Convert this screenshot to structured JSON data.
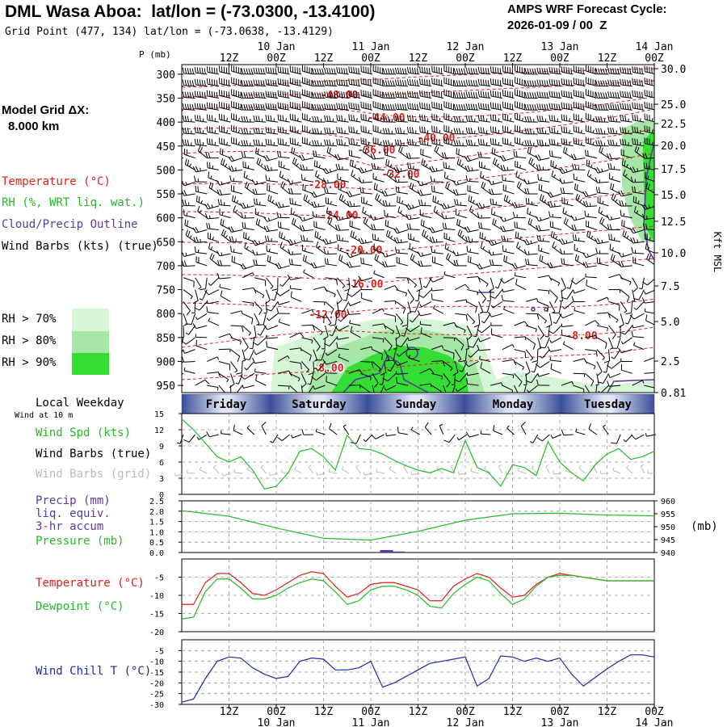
{
  "header": {
    "title": "DML Wasa Aboa:  lat/lon = (-73.0300, -13.4100)",
    "subtitle": "Grid Point (477, 134) lat/lon = (-73.0638, -13.4129)",
    "forecast_label": "AMPS WRF Forecast Cycle:",
    "forecast_cycle": "2026-01-09 / 00  Z",
    "p_label": "P (mb)",
    "model_grid_label": "Model Grid ΔX:",
    "model_grid_value": "8.000 km"
  },
  "time_axis": {
    "top_dates": [
      "10 Jan",
      "11 Jan",
      "12 Jan",
      "13 Jan",
      "14 Jan"
    ],
    "hour_labels": [
      "12Z",
      "00Z",
      "12Z",
      "00Z",
      "12Z",
      "00Z",
      "12Z",
      "00Z",
      "12Z",
      "00Z"
    ],
    "weekday_label": "Local Weekday",
    "weekdays": [
      "Friday",
      "Saturday",
      "Sunday",
      "Monday",
      "Tuesday"
    ]
  },
  "colors": {
    "temp": "#e0201c",
    "rh": "#22bb22",
    "cloud": "#5a3a9a",
    "wind_chill": "#1a2aa8",
    "rh70": "#d6f5d6",
    "rh80": "#a6e6a6",
    "rh90": "#33dd33",
    "barb_grid": "#bbbbbb"
  },
  "chart_data": [
    {
      "type": "contour",
      "title": "Vertical cross-section",
      "legend": {
        "temperature": "Temperature (°C)",
        "rh": "RH (%, WRT liq. wat.)",
        "cloud": "Cloud/Precip Outline",
        "wind": "Wind Barbs (kts) (true)",
        "rh70": "RH > 70%",
        "rh80": "RH > 80%",
        "rh90": "RH > 90%"
      },
      "pressure_ticks": [
        "300",
        "350",
        "400",
        "450",
        "500",
        "550",
        "600",
        "650",
        "700",
        "750",
        "800",
        "850",
        "900",
        "950"
      ],
      "height_label": "Kft MSL",
      "height_ticks": [
        "30.0",
        "25.0",
        "22.5",
        "20.0",
        "17.5",
        "15.0",
        "12.5",
        "10.0",
        "7.5",
        "5.0",
        "2.5",
        "0.81"
      ],
      "temperature_labels": [
        "-48.00",
        "-44.00",
        "-40.00",
        "-36.00",
        "-32.00",
        "-28.00",
        "-24.00",
        "-20.00",
        "-16.00",
        "-12.00",
        "-8.00",
        "-8.00"
      ]
    },
    {
      "type": "line",
      "title": "Wind speed at 10 m",
      "label_wind_at": "Wind at 10 m",
      "label_speed": "Wind Spd (kts)",
      "label_barbs_true": "Wind Barbs (true)",
      "label_barbs_grid": "Wind Barbs (grid)",
      "y_ticks": [
        "15",
        "12",
        "9",
        "6",
        "3",
        "0"
      ],
      "ylim": [
        0,
        15
      ],
      "hours": [
        0,
        3,
        6,
        9,
        12,
        15,
        18,
        21,
        24,
        27,
        30,
        33,
        36,
        39,
        42,
        45,
        48,
        51,
        54,
        57,
        60,
        63,
        66,
        69,
        72,
        75,
        78,
        81,
        84,
        87,
        90,
        93,
        96,
        99,
        102,
        105,
        108,
        111,
        114,
        117,
        120
      ],
      "values": [
        14,
        12,
        9.5,
        7,
        6,
        7,
        4.5,
        1,
        1.5,
        4,
        8,
        8.5,
        7,
        4.5,
        11,
        8.5,
        8.3,
        7.5,
        6.3,
        5.3,
        4.5,
        4,
        4.8,
        4,
        10,
        5,
        4,
        1.5,
        5.5,
        5,
        3.5,
        9.8,
        6,
        4,
        2.5,
        5.5,
        7.5,
        8.5,
        6.5,
        7,
        8
      ]
    },
    {
      "type": "line",
      "title": "Precipitation and pressure",
      "label_precip": "Precip (mm)",
      "label_liq": "liq. equiv.",
      "label_accum": "3-hr accum",
      "label_pressure": "Pressure (mb)",
      "precip_ticks": [
        "2.5",
        "2.0",
        "1.5",
        "1.0",
        "0.5",
        "0.0"
      ],
      "pressure_ticks": [
        "960",
        "955",
        "950",
        "945",
        "940"
      ],
      "pressure_unit": "(mb)",
      "precip_ylim": [
        0,
        2.5
      ],
      "pressure_ylim": [
        940,
        960
      ],
      "hours": [
        0,
        12,
        24,
        36,
        48,
        60,
        72,
        84,
        96,
        108,
        120
      ],
      "pressure": [
        956.2,
        954.0,
        949.5,
        945.5,
        944.8,
        948.2,
        952.5,
        955.0,
        955.2,
        954.5,
        954.2
      ],
      "precip_bars": [
        {
          "hour": 52,
          "value": 0.12
        },
        {
          "hour": 55,
          "value": 0.05
        }
      ]
    },
    {
      "type": "line",
      "title": "Temperature and dewpoint",
      "label_temp": "Temperature (°C)",
      "label_dew": "Dewpoint (°C)",
      "y_ticks": [
        "-5",
        "-10",
        "-15",
        "-20"
      ],
      "ylim": [
        -20,
        0
      ],
      "hours": [
        0,
        3,
        6,
        9,
        12,
        15,
        18,
        21,
        24,
        27,
        30,
        33,
        36,
        39,
        42,
        45,
        48,
        51,
        54,
        57,
        60,
        63,
        66,
        69,
        72,
        75,
        78,
        81,
        84,
        87,
        90,
        93,
        96,
        99,
        102,
        105,
        108,
        111,
        114,
        117,
        120
      ],
      "temperature": [
        -12.5,
        -12.5,
        -6.5,
        -4.0,
        -4.0,
        -6.5,
        -9.5,
        -10.0,
        -8.5,
        -6.5,
        -4.5,
        -3.5,
        -4.0,
        -7.5,
        -10.5,
        -9.5,
        -7.0,
        -6.5,
        -6.5,
        -7.5,
        -8.5,
        -11.5,
        -11.5,
        -7.5,
        -5.5,
        -4.0,
        -5.0,
        -8.0,
        -10.5,
        -10.0,
        -7.0,
        -5.0,
        -4.0,
        -4.5,
        -5.0,
        -5.5,
        -6.0,
        -6.0,
        -6.0,
        -6.0,
        -6.0
      ],
      "dewpoint": [
        -16.5,
        -16.0,
        -9.0,
        -5.5,
        -5.5,
        -8.0,
        -11.0,
        -11.0,
        -10.0,
        -8.0,
        -6.5,
        -5.5,
        -6.0,
        -9.0,
        -12.5,
        -11.5,
        -8.5,
        -7.5,
        -7.5,
        -8.5,
        -10.0,
        -13.0,
        -13.5,
        -9.5,
        -7.0,
        -5.0,
        -6.0,
        -9.5,
        -12.5,
        -11.0,
        -7.5,
        -5.0,
        -4.5,
        -4.5,
        -5.0,
        -5.5,
        -6.0,
        -6.0,
        -6.0,
        -6.0,
        -6.0
      ]
    },
    {
      "type": "line",
      "title": "Wind chill",
      "label_chill": "Wind Chill T (°C)",
      "y_ticks": [
        "-5",
        "-10",
        "-15",
        "-20",
        "-25",
        "-30"
      ],
      "ylim": [
        -30,
        0
      ],
      "hours": [
        0,
        3,
        6,
        9,
        12,
        15,
        18,
        21,
        24,
        27,
        30,
        33,
        36,
        39,
        42,
        45,
        48,
        51,
        54,
        57,
        60,
        63,
        66,
        69,
        72,
        75,
        78,
        81,
        84,
        87,
        90,
        93,
        96,
        99,
        102,
        105,
        108,
        111,
        114,
        117,
        120
      ],
      "values": [
        -29,
        -27.5,
        -18,
        -10,
        -8,
        -8.5,
        -13,
        -16,
        -18,
        -17,
        -10,
        -8.5,
        -9,
        -14,
        -14,
        -13,
        -10,
        -22,
        -20,
        -17,
        -14,
        -11,
        -10,
        -9,
        -8,
        -21.5,
        -18,
        -7.5,
        -8,
        -10,
        -8.5,
        -10,
        -8.5,
        -16,
        -21.5,
        -17.5,
        -13.5,
        -10,
        -7,
        -7,
        -8
      ]
    }
  ]
}
